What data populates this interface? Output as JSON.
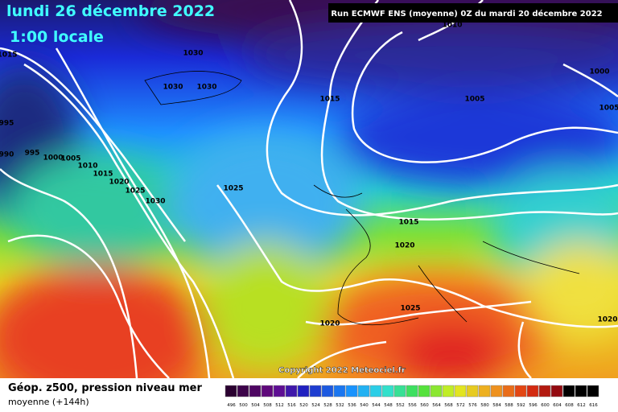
{
  "header": {
    "date": "lundi 26 décembre 2022",
    "time": "1:00 locale",
    "run": "Run ECMWF ENS (moyenne) 0Z du mardi 20 décembre 2022"
  },
  "isobar_labels": [
    "1015",
    "1030",
    "1030",
    "1030",
    "995",
    "990",
    "995",
    "1000",
    "1005",
    "1010",
    "1015",
    "1020",
    "1025",
    "1030",
    "1025",
    "1015",
    "1010",
    "1005",
    "1000",
    "1005",
    "1015",
    "1020",
    "1025",
    "1020",
    "1020"
  ],
  "copyright": "Copyright 2022 Meteociel.fr",
  "legend": {
    "title": "Géop. z500, pression niveau mer",
    "subtitle": "moyenne  (+144h)",
    "scale": [
      "496",
      "500",
      "504",
      "508",
      "512",
      "516",
      "520",
      "524",
      "528",
      "532",
      "536",
      "540",
      "544",
      "548",
      "552",
      "556",
      "560",
      "564",
      "568",
      "572",
      "576",
      "580",
      "584",
      "588",
      "592",
      "596",
      "600",
      "604",
      "608",
      "612",
      "616"
    ]
  }
}
